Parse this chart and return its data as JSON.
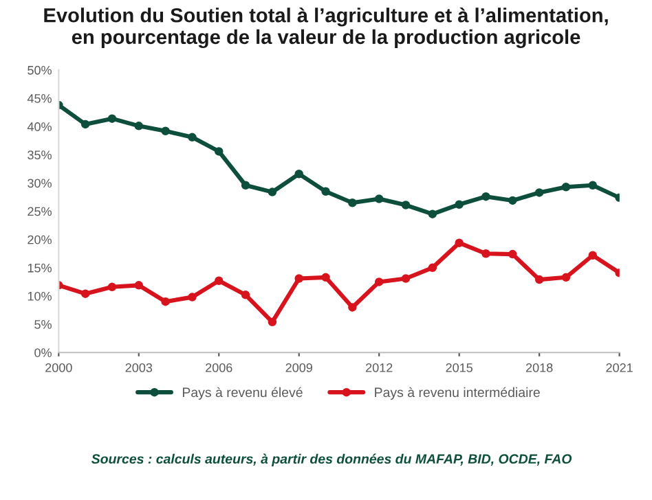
{
  "chart_data": {
    "type": "line",
    "title": "Evolution du Soutien total à l’agriculture et à l’alimentation,\nen pourcentage de la valeur de la production agricole",
    "x": [
      2000,
      2001,
      2002,
      2003,
      2004,
      2005,
      2006,
      2007,
      2008,
      2009,
      2010,
      2011,
      2012,
      2013,
      2014,
      2015,
      2016,
      2017,
      2018,
      2019,
      2020,
      2021
    ],
    "series": [
      {
        "name": "Pays à revenu élevé",
        "color": "#0d4f3c",
        "values": [
          43.8,
          40.4,
          41.4,
          40.1,
          39.2,
          38.1,
          35.6,
          29.6,
          28.4,
          31.6,
          28.5,
          26.5,
          27.2,
          26.1,
          24.5,
          26.2,
          27.6,
          26.9,
          28.3,
          29.3,
          29.6,
          27.4
        ]
      },
      {
        "name": "Pays à revenu intermédiaire",
        "color": "#d7141e",
        "values": [
          11.9,
          10.4,
          11.6,
          11.9,
          9.0,
          9.8,
          12.7,
          10.2,
          5.4,
          13.1,
          13.3,
          8.0,
          12.5,
          13.1,
          15.0,
          19.4,
          17.5,
          17.4,
          12.9,
          13.3,
          17.2,
          14.1
        ]
      }
    ],
    "xlim": [
      2000,
      2021
    ],
    "xticks": [
      2000,
      2003,
      2006,
      2009,
      2012,
      2015,
      2018,
      2021
    ],
    "ylim": [
      0,
      50
    ],
    "yticks": [
      {
        "value": 0,
        "label": "0%"
      },
      {
        "value": 5,
        "label": "5%"
      },
      {
        "value": 10,
        "label": "10%"
      },
      {
        "value": 15,
        "label": "15%"
      },
      {
        "value": 20,
        "label": "20%"
      },
      {
        "value": 25,
        "label": "25%"
      },
      {
        "value": 30,
        "label": "30%"
      },
      {
        "value": 35,
        "label": "35%"
      },
      {
        "value": 40,
        "label": "40%"
      },
      {
        "value": 45,
        "label": "45%"
      },
      {
        "value": 50,
        "label": "50%"
      }
    ],
    "grid": false,
    "legend": "bottom",
    "marker": "circle",
    "line_style": "solid",
    "annotations": [
      "Sources : calculs auteurs, à partir des données du MAFAP, BID, OCDE, FAO"
    ]
  }
}
